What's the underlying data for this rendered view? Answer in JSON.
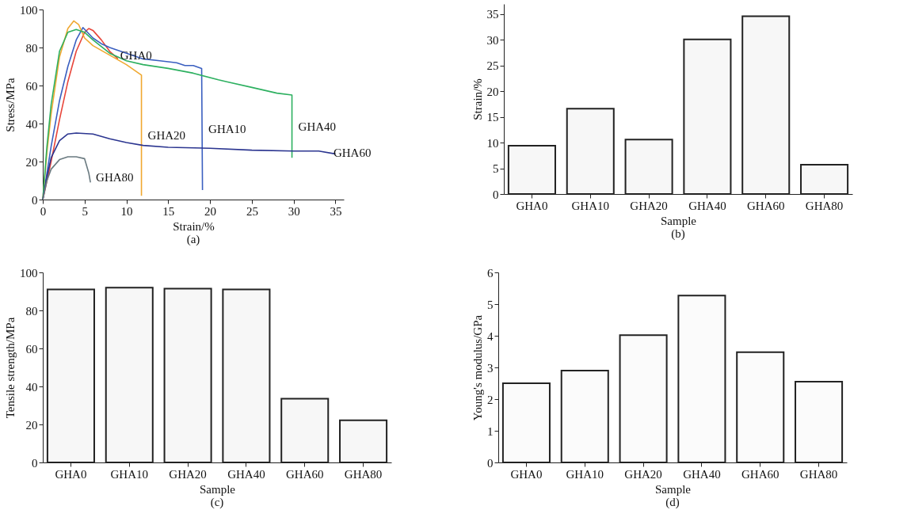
{
  "chart_data": [
    {
      "type": "line",
      "title": "(a)",
      "xlabel": "Strain/%",
      "ylabel": "Stress/MPa",
      "xlim": [
        0,
        36
      ],
      "xticks": [
        0,
        5,
        10,
        15,
        20,
        25,
        30,
        35
      ],
      "ylim": [
        0,
        100
      ],
      "yticks": [
        0,
        20,
        40,
        60,
        80,
        100
      ],
      "series": [
        {
          "name": "GHA0",
          "color": "#e8453a",
          "x": [
            0,
            1,
            2,
            3,
            4,
            5,
            5.5,
            6,
            7,
            8,
            9
          ],
          "values": [
            0,
            20,
            42,
            62,
            78,
            88,
            90,
            89,
            84,
            78,
            74
          ]
        },
        {
          "name": "GHA10",
          "color": "#3a5fc0",
          "x": [
            0,
            1,
            2,
            3,
            4,
            4.8,
            6,
            7,
            8,
            10,
            12,
            14,
            16,
            17,
            18,
            19,
            19.1
          ],
          "values": [
            0,
            28,
            52,
            70,
            84,
            90.5,
            85,
            82,
            80,
            77,
            74,
            73,
            72,
            70.5,
            70.5,
            69,
            5
          ]
        },
        {
          "name": "GHA20",
          "color": "#f0a830",
          "x": [
            0,
            0.5,
            1,
            2,
            3,
            3.7,
            4.3,
            5,
            6,
            8,
            10,
            11.8,
            11.8
          ],
          "values": [
            0,
            25,
            45,
            75,
            90,
            94,
            92,
            85,
            81,
            76,
            71,
            65.5,
            2
          ]
        },
        {
          "name": "GHA40",
          "color": "#2db060",
          "x": [
            0,
            0.5,
            1,
            2,
            3,
            4,
            5,
            6,
            8,
            10,
            12,
            15,
            18,
            21,
            22,
            25,
            28,
            29.8,
            29.8
          ],
          "values": [
            0,
            28,
            50,
            78,
            88,
            89.5,
            88,
            84,
            77,
            73,
            71,
            69,
            66.5,
            63,
            62,
            59,
            56,
            55,
            22
          ]
        },
        {
          "name": "GHA60",
          "color": "#2b3590",
          "x": [
            0,
            0.5,
            1,
            2,
            3,
            4,
            6,
            8,
            10,
            12,
            15,
            20,
            25,
            30,
            33,
            35
          ],
          "values": [
            0,
            12,
            22,
            31,
            34.5,
            35,
            34.5,
            32,
            30,
            28.5,
            27.5,
            27,
            26,
            25.5,
            25.5,
            24
          ]
        },
        {
          "name": "GHA80",
          "color": "#6a7a80",
          "x": [
            0,
            0.5,
            1,
            2,
            3,
            4,
            5,
            5.5,
            5.7
          ],
          "values": [
            0,
            10,
            16,
            21,
            22.5,
            22.5,
            21.5,
            14,
            9
          ]
        }
      ]
    },
    {
      "type": "bar",
      "title": "(b)",
      "xlabel": "Sample",
      "ylabel": "Strain/%",
      "categories": [
        "GHA0",
        "GHA10",
        "GHA20",
        "GHA40",
        "GHA60",
        "GHA80"
      ],
      "values": [
        9.4,
        16.6,
        10.6,
        30.1,
        34.6,
        5.7
      ],
      "color": "#f7f7f7",
      "ylim": [
        0,
        37
      ],
      "yticks": [
        0,
        5,
        10,
        15,
        20,
        25,
        30,
        35
      ]
    },
    {
      "type": "bar",
      "title": "(c)",
      "xlabel": "Sample",
      "ylabel": "Tensile strength/MPa",
      "categories": [
        "GHA0",
        "GHA10",
        "GHA20",
        "GHA40",
        "GHA60",
        "GHA80"
      ],
      "values": [
        91,
        92,
        91.5,
        91,
        33.5,
        22.2
      ],
      "color": "#f7f7f7",
      "ylim": [
        0,
        100
      ],
      "yticks": [
        0,
        20,
        40,
        60,
        80,
        100
      ]
    },
    {
      "type": "bar",
      "title": "(d)",
      "xlabel": "Sample",
      "ylabel": "Young's modulus/GPa",
      "categories": [
        "GHA0",
        "GHA10",
        "GHA20",
        "GHA40",
        "GHA60",
        "GHA80"
      ],
      "values": [
        2.5,
        2.9,
        4.02,
        5.27,
        3.48,
        2.55
      ],
      "color": "#fbfbfb",
      "ylim": [
        0,
        6
      ],
      "yticks": [
        0,
        1,
        2,
        3,
        4,
        5,
        6
      ]
    }
  ]
}
